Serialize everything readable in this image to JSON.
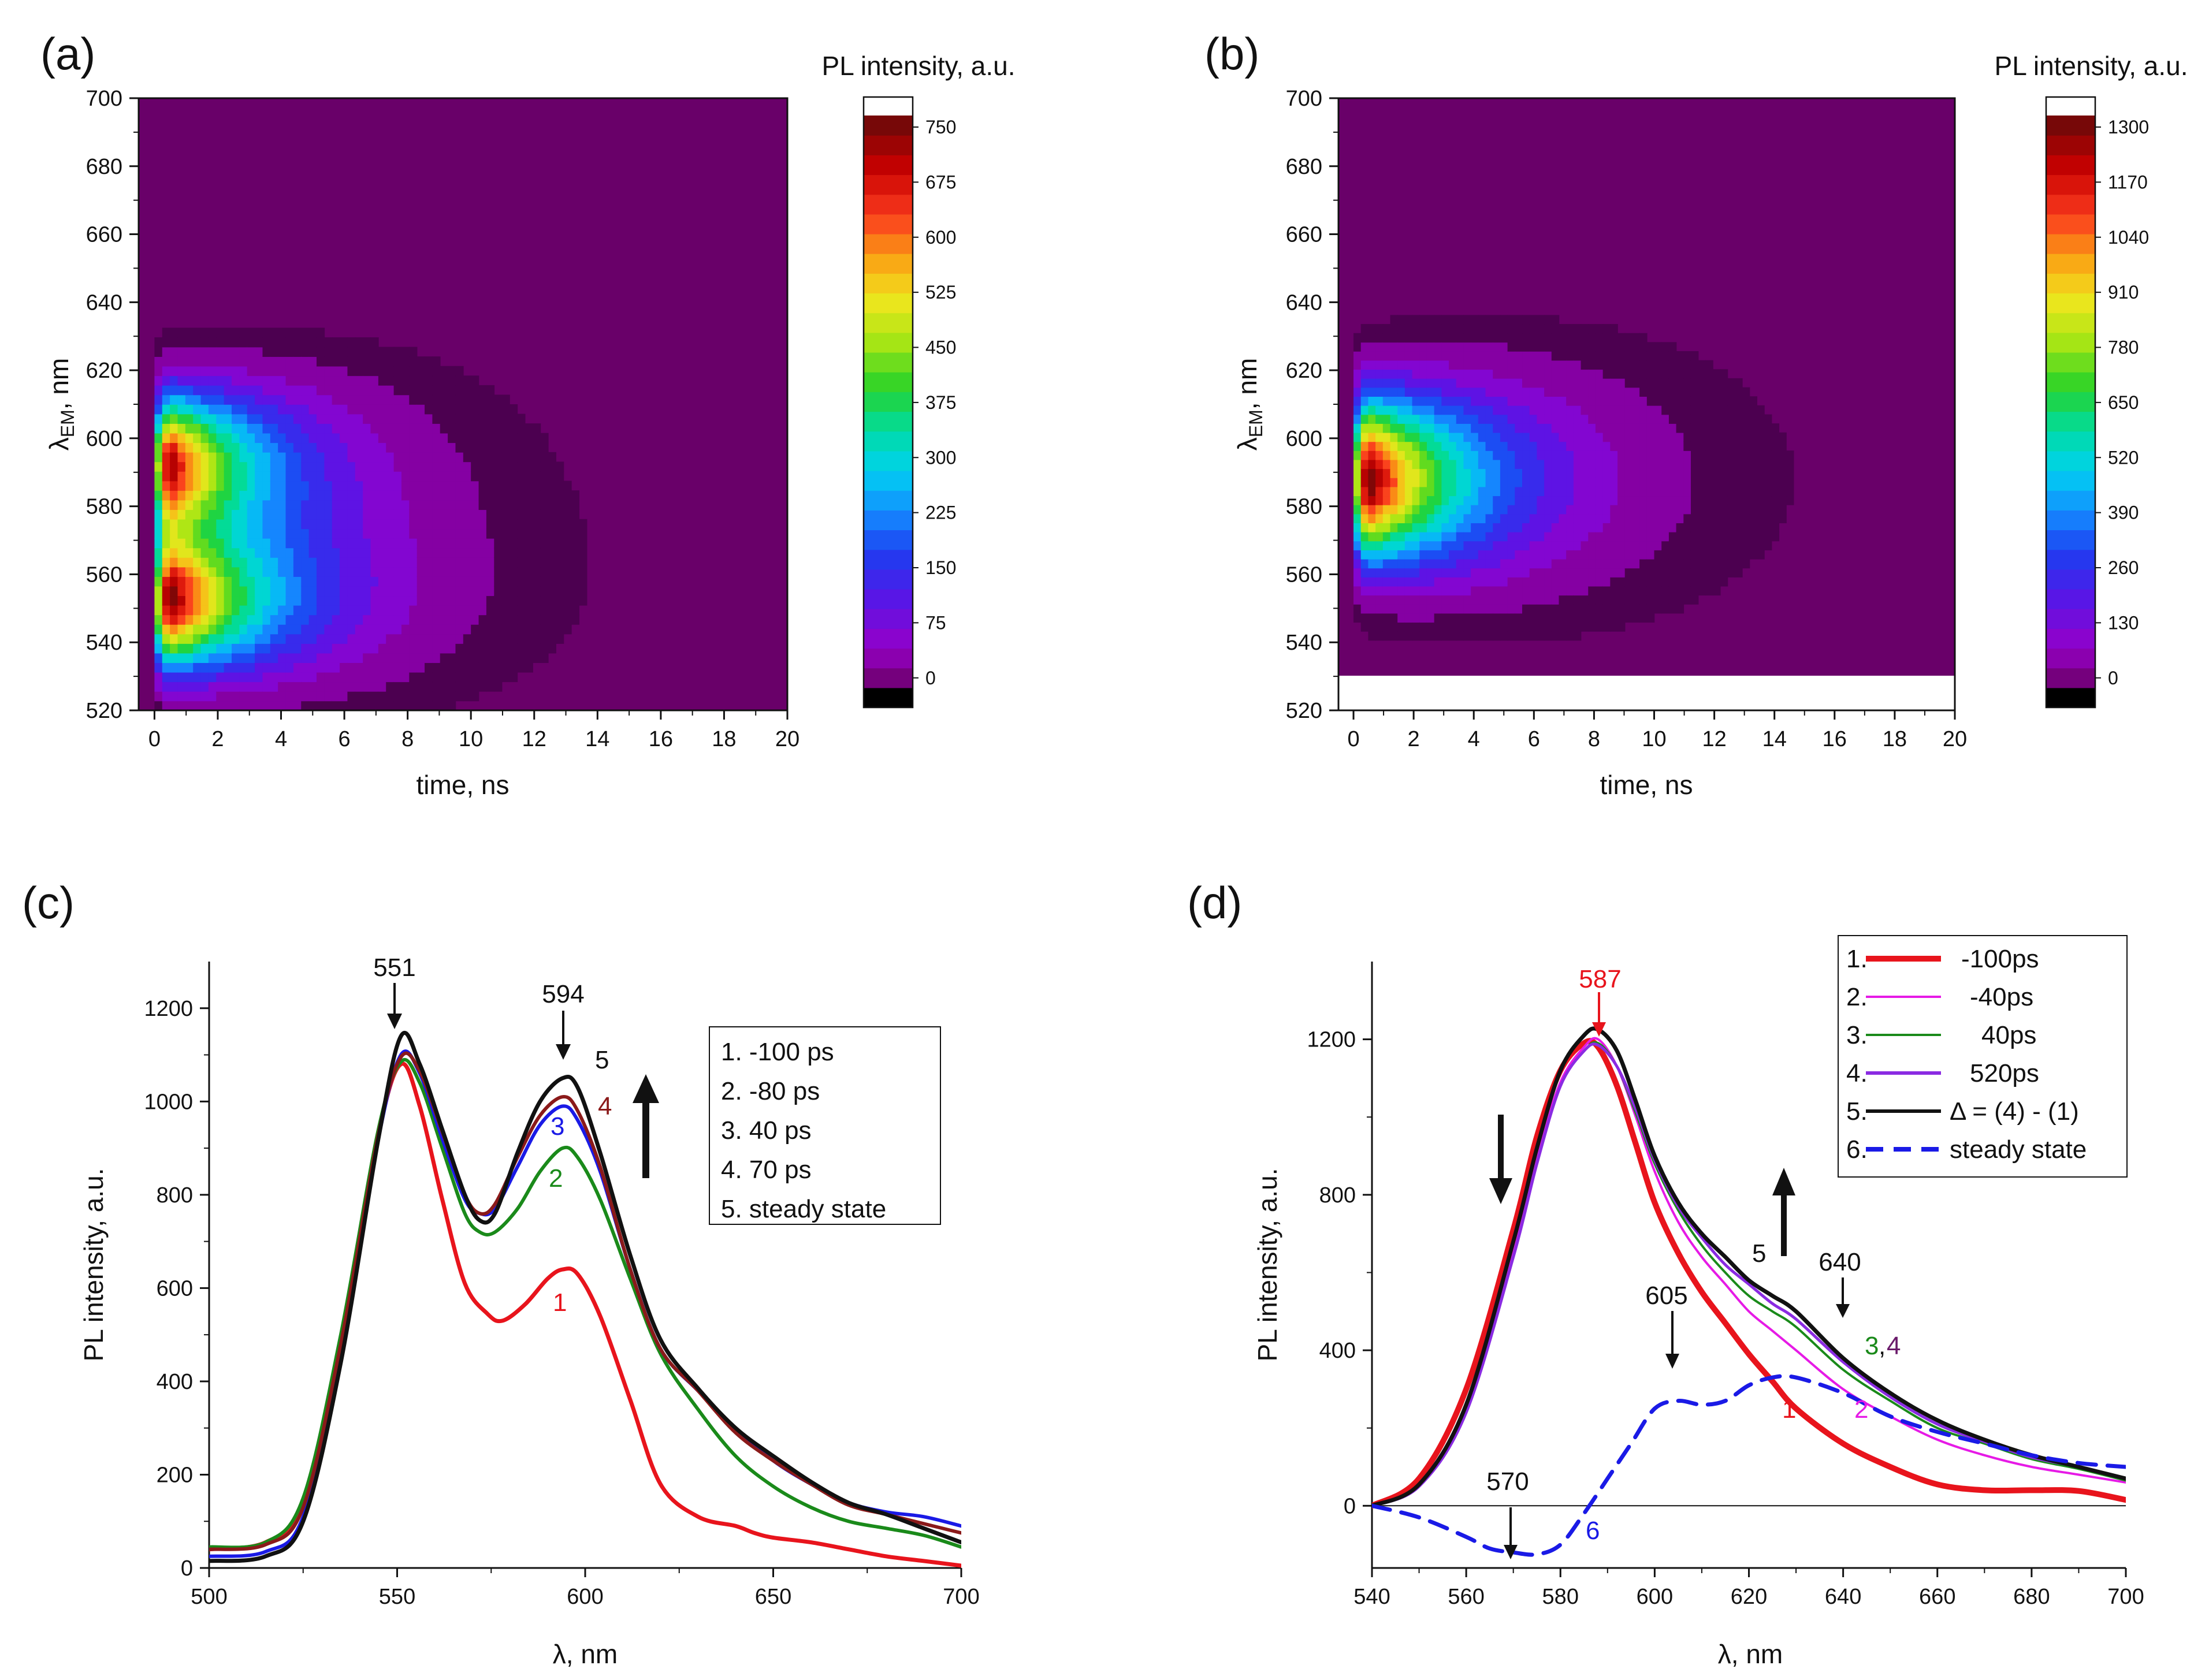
{
  "chart_data": [
    {
      "panel": "(a)",
      "type": "heatmap",
      "title": "",
      "colorbar_title": "PL intensity, a.u.",
      "xlabel": "time, ns",
      "ylabel_main": "λ",
      "ylabel_sub": "EM",
      "ylabel_unit": ", nm",
      "xlim": [
        -0.5,
        20
      ],
      "ylim": [
        520,
        700
      ],
      "xticks": [
        "0",
        "2",
        "4",
        "6",
        "8",
        "10",
        "12",
        "14",
        "16",
        "18",
        "20"
      ],
      "yticks": [
        "520",
        "540",
        "560",
        "580",
        "600",
        "620",
        "640",
        "660",
        "680",
        "700"
      ],
      "colorbar_ticks": [
        "0",
        "75",
        "150",
        "225",
        "300",
        "375",
        "450",
        "525",
        "600",
        "675",
        "750"
      ],
      "colorbar_max": 750,
      "blobs": [
        {
          "center_wavelength": 552,
          "peak_time": 0.6,
          "peak_intensity": 720,
          "decay_ns": 3.2,
          "width_nm": 13
        },
        {
          "center_wavelength": 592,
          "peak_time": 0.6,
          "peak_intensity": 690,
          "decay_ns": 3.0,
          "width_nm": 14
        }
      ]
    },
    {
      "panel": "(b)",
      "type": "heatmap",
      "title": "",
      "colorbar_title": "PL intensity, a.u.",
      "xlabel": "time, ns",
      "ylabel_main": "λ",
      "ylabel_sub": "EM",
      "ylabel_unit": ", nm",
      "xlim": [
        -0.5,
        20
      ],
      "ylim": [
        520,
        700
      ],
      "data_ylim_bottom": 530,
      "xticks": [
        "0",
        "2",
        "4",
        "6",
        "8",
        "10",
        "12",
        "14",
        "16",
        "18",
        "20"
      ],
      "yticks": [
        "520",
        "540",
        "560",
        "580",
        "600",
        "620",
        "640",
        "660",
        "680",
        "700"
      ],
      "colorbar_ticks": [
        "0",
        "130",
        "260",
        "390",
        "520",
        "650",
        "780",
        "910",
        "1040",
        "1170",
        "1300"
      ],
      "colorbar_max": 1300,
      "blobs": [
        {
          "center_wavelength": 588,
          "peak_time": 0.6,
          "peak_intensity": 1280,
          "decay_ns": 3.6,
          "width_nm": 16
        }
      ]
    },
    {
      "panel": "(c)",
      "type": "line",
      "title": "",
      "xlabel": "λ, nm",
      "ylabel": "PL intensity, a.u.",
      "xlim": [
        500,
        700
      ],
      "ylim": [
        0,
        1300
      ],
      "xticks": [
        "500",
        "550",
        "600",
        "650",
        "700"
      ],
      "yticks": [
        "0",
        "200",
        "400",
        "600",
        "800",
        "1000",
        "1200"
      ],
      "legend": [
        "1. -100 ps",
        "2.  -80  ps",
        "3.   40 ps",
        "4.   70 ps",
        "5. steady state"
      ],
      "series": [
        {
          "name": "1",
          "color": "#e8141c",
          "x": [
            500,
            515,
            525,
            535,
            545,
            551,
            556,
            562,
            568,
            574,
            578,
            584,
            590,
            594,
            598,
            604,
            612,
            620,
            630,
            640,
            645,
            650,
            660,
            670,
            680,
            690,
            700
          ],
          "y": [
            40,
            55,
            140,
            490,
            930,
            1080,
            990,
            790,
            610,
            545,
            530,
            565,
            620,
            640,
            630,
            540,
            360,
            180,
            110,
            90,
            75,
            65,
            55,
            40,
            25,
            15,
            5
          ]
        },
        {
          "name": "2",
          "color": "#1a8a1a",
          "x": [
            500,
            515,
            525,
            535,
            545,
            551,
            556,
            562,
            568,
            572,
            576,
            582,
            588,
            594,
            598,
            604,
            612,
            620,
            630,
            640,
            650,
            660,
            670,
            680,
            690,
            700
          ],
          "y": [
            45,
            55,
            150,
            500,
            940,
            1085,
            1040,
            900,
            760,
            720,
            720,
            770,
            850,
            900,
            880,
            790,
            620,
            460,
            340,
            240,
            175,
            130,
            100,
            85,
            70,
            45
          ]
        },
        {
          "name": "3",
          "color": "#1a1ae6",
          "x": [
            500,
            515,
            525,
            535,
            545,
            551,
            556,
            562,
            568,
            572,
            576,
            582,
            588,
            594,
            598,
            604,
            612,
            620,
            630,
            640,
            650,
            660,
            670,
            680,
            690,
            700
          ],
          "y": [
            25,
            35,
            110,
            460,
            920,
            1100,
            1060,
            920,
            790,
            760,
            770,
            860,
            950,
            990,
            960,
            850,
            640,
            470,
            380,
            300,
            230,
            180,
            140,
            120,
            110,
            90
          ]
        },
        {
          "name": "4",
          "color": "#8b1a1a",
          "x": [
            500,
            515,
            525,
            535,
            545,
            551,
            556,
            562,
            568,
            572,
            576,
            582,
            588,
            594,
            598,
            604,
            612,
            620,
            630,
            640,
            650,
            660,
            670,
            680,
            690,
            700
          ],
          "y": [
            40,
            50,
            130,
            480,
            930,
            1095,
            1065,
            935,
            800,
            760,
            780,
            880,
            970,
            1010,
            980,
            860,
            640,
            470,
            380,
            290,
            230,
            180,
            135,
            115,
            95,
            75
          ]
        },
        {
          "name": "5",
          "color": "#111111",
          "x": [
            500,
            515,
            525,
            535,
            545,
            551,
            556,
            562,
            568,
            572,
            576,
            582,
            588,
            594,
            598,
            604,
            612,
            620,
            630,
            640,
            650,
            660,
            670,
            680,
            690,
            700
          ],
          "y": [
            15,
            25,
            100,
            440,
            920,
            1140,
            1080,
            940,
            800,
            745,
            760,
            890,
            1000,
            1050,
            1030,
            890,
            670,
            490,
            385,
            300,
            240,
            185,
            140,
            115,
            85,
            55
          ]
        }
      ],
      "annotations": {
        "peak1": "551",
        "peak2": "594",
        "curve_labels": [
          "1",
          "2",
          "3",
          "4",
          "5"
        ]
      }
    },
    {
      "panel": "(d)",
      "type": "line",
      "title": "",
      "xlabel": "λ, nm",
      "ylabel": "PL intensity, a.u.",
      "xlim": [
        540,
        700
      ],
      "ylim": [
        -160,
        1400
      ],
      "xticks": [
        "540",
        "560",
        "580",
        "600",
        "620",
        "640",
        "660",
        "680",
        "700"
      ],
      "yticks": [
        "0",
        "400",
        "800",
        "1200"
      ],
      "legend": [
        "1.",
        "2.",
        "3.",
        "4.",
        "5.",
        "6."
      ],
      "legend_values": [
        "-100ps",
        "-40ps",
        "40ps",
        "520ps",
        "Δ = (4) - (1)",
        "steady state"
      ],
      "series": [
        {
          "name": "1",
          "color": "#e8141c",
          "x": [
            540,
            550,
            560,
            570,
            575,
            580,
            585,
            588,
            592,
            596,
            600,
            605,
            610,
            615,
            620,
            625,
            630,
            640,
            650,
            660,
            670,
            680,
            690,
            700
          ],
          "y": [
            0,
            70,
            300,
            710,
            950,
            1120,
            1190,
            1180,
            1080,
            930,
            780,
            650,
            550,
            470,
            390,
            320,
            250,
            160,
            100,
            55,
            40,
            40,
            38,
            15
          ]
        },
        {
          "name": "2",
          "color": "#e61ae6",
          "x": [
            540,
            550,
            560,
            570,
            575,
            580,
            585,
            588,
            592,
            596,
            600,
            605,
            610,
            615,
            620,
            625,
            630,
            640,
            650,
            660,
            670,
            680,
            690,
            700
          ],
          "y": [
            0,
            55,
            250,
            660,
            900,
            1090,
            1180,
            1200,
            1130,
            1000,
            860,
            730,
            640,
            570,
            500,
            450,
            400,
            300,
            230,
            170,
            130,
            100,
            80,
            60
          ]
        },
        {
          "name": "3",
          "color": "#1a8a1a",
          "x": [
            540,
            550,
            560,
            570,
            575,
            580,
            585,
            588,
            592,
            596,
            600,
            605,
            610,
            615,
            620,
            625,
            630,
            640,
            650,
            660,
            670,
            680,
            690,
            700
          ],
          "y": [
            0,
            50,
            240,
            640,
            880,
            1080,
            1170,
            1190,
            1130,
            1010,
            880,
            760,
            670,
            600,
            540,
            500,
            460,
            350,
            270,
            200,
            160,
            120,
            95,
            65
          ]
        },
        {
          "name": "4",
          "color": "#8a2be2",
          "x": [
            540,
            550,
            560,
            570,
            575,
            580,
            585,
            588,
            592,
            596,
            600,
            605,
            610,
            615,
            620,
            625,
            630,
            640,
            650,
            660,
            670,
            680,
            690,
            700
          ],
          "y": [
            0,
            50,
            240,
            640,
            880,
            1080,
            1170,
            1185,
            1130,
            1020,
            890,
            770,
            690,
            620,
            570,
            520,
            480,
            370,
            280,
            210,
            165,
            125,
            100,
            70
          ]
        },
        {
          "name": "5",
          "color": "#111111",
          "x": [
            540,
            550,
            560,
            570,
            575,
            580,
            585,
            588,
            592,
            596,
            600,
            605,
            610,
            615,
            620,
            625,
            630,
            640,
            650,
            660,
            670,
            680,
            690,
            700
          ],
          "y": [
            0,
            55,
            260,
            680,
            920,
            1120,
            1210,
            1225,
            1170,
            1040,
            900,
            780,
            700,
            640,
            580,
            540,
            500,
            380,
            290,
            220,
            170,
            130,
            100,
            70
          ]
        },
        {
          "name": "6",
          "color": "#1a1ae6",
          "dashed": true,
          "x": [
            540,
            550,
            560,
            565,
            570,
            575,
            580,
            585,
            590,
            595,
            600,
            605,
            610,
            615,
            620,
            625,
            630,
            640,
            650,
            660,
            670,
            680,
            690,
            700
          ],
          "y": [
            0,
            -30,
            -80,
            -110,
            -120,
            -125,
            -100,
            -20,
            70,
            160,
            250,
            270,
            260,
            270,
            310,
            330,
            330,
            290,
            230,
            190,
            160,
            130,
            110,
            100
          ]
        }
      ],
      "annotations": {
        "peak_red": "587",
        "mark605": "605",
        "mark640": "640",
        "mark570": "570",
        "label5": "5",
        "label34_a": "3",
        "label34_sep": ",",
        "label34_b": "4",
        "label1": "1",
        "label2": "2",
        "label6": "6"
      }
    }
  ]
}
